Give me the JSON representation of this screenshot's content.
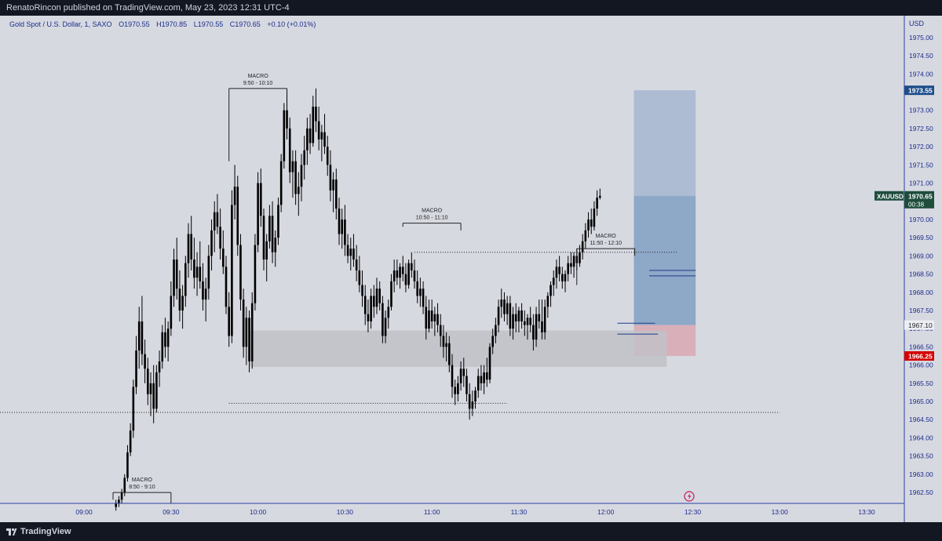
{
  "header": {
    "published": "RenatoRincon published on TradingView.com, May 23, 2023 12:31 UTC-4"
  },
  "legend": {
    "symbol": "Gold Spot / U.S. Dollar, 1, SAXO",
    "open": "O1970.55",
    "high": "H1970.85",
    "low": "L1970.55",
    "close": "C1970.65",
    "change": "+0.10 (+0.01%)"
  },
  "footer": {
    "brand": "TradingView"
  },
  "colors": {
    "background": "#d7d9e1",
    "axis_line": "#2b3ea4",
    "candle": "#000000",
    "target_zone": "#9fb1cd",
    "position_zone": "#6f93be",
    "stop_zone": "#d9a8b2",
    "gray_zone": "#c1c1c7",
    "last_price_bg": "#1e4d3c",
    "target_label_bg": "#1d4e8a",
    "stop_label_bg": "#d40000"
  },
  "chart_data": {
    "type": "candlestick",
    "currency": "USD",
    "ylim": [
      1962.2,
      1975.6
    ],
    "y_ticks": [
      "1962.50",
      "1963.00",
      "1963.50",
      "1964.00",
      "1964.50",
      "1965.00",
      "1965.50",
      "1966.00",
      "1966.50",
      "1967.00",
      "1967.50",
      "1968.00",
      "1968.50",
      "1969.00",
      "1969.50",
      "1970.00",
      "1970.50",
      "1971.00",
      "1971.50",
      "1972.00",
      "1972.50",
      "1973.00",
      "1973.50",
      "1974.00",
      "1974.50",
      "1975.00"
    ],
    "x_ticks": [
      {
        "label": "09:00",
        "minute": 540
      },
      {
        "label": "09:30",
        "minute": 570
      },
      {
        "label": "10:00",
        "minute": 600
      },
      {
        "label": "10:30",
        "minute": 630
      },
      {
        "label": "11:00",
        "minute": 660
      },
      {
        "label": "11:30",
        "minute": 690
      },
      {
        "label": "12:00",
        "minute": 720
      },
      {
        "label": "12:30",
        "minute": 750
      },
      {
        "label": "13:00",
        "minute": 780
      },
      {
        "label": "13:30",
        "minute": 810
      }
    ],
    "xlim_minutes": [
      511,
      823
    ],
    "start_minute": 551,
    "candles": [
      [
        1962.1,
        1962.3,
        1962.0,
        1962.2
      ],
      [
        1962.2,
        1962.4,
        1962.1,
        1962.3
      ],
      [
        1962.3,
        1962.6,
        1962.2,
        1962.5
      ],
      [
        1962.5,
        1963.0,
        1962.4,
        1962.9
      ],
      [
        1962.9,
        1963.8,
        1962.8,
        1963.6
      ],
      [
        1963.6,
        1964.4,
        1963.5,
        1964.2
      ],
      [
        1964.2,
        1965.6,
        1964.0,
        1965.4
      ],
      [
        1965.4,
        1966.8,
        1965.2,
        1966.4
      ],
      [
        1966.4,
        1967.6,
        1965.9,
        1967.2
      ],
      [
        1967.2,
        1967.9,
        1966.0,
        1966.3
      ],
      [
        1966.3,
        1966.7,
        1965.5,
        1965.9
      ],
      [
        1965.9,
        1966.2,
        1964.9,
        1965.2
      ],
      [
        1965.2,
        1965.8,
        1964.6,
        1965.5
      ],
      [
        1965.5,
        1966.0,
        1964.4,
        1964.8
      ],
      [
        1964.8,
        1966.0,
        1964.7,
        1965.8
      ],
      [
        1965.8,
        1966.4,
        1965.4,
        1966.1
      ],
      [
        1966.1,
        1967.1,
        1965.9,
        1966.9
      ],
      [
        1966.9,
        1967.3,
        1966.2,
        1966.5
      ],
      [
        1966.5,
        1967.2,
        1966.1,
        1967.0
      ],
      [
        1967.0,
        1968.3,
        1966.8,
        1967.9
      ],
      [
        1967.9,
        1969.2,
        1967.6,
        1968.9
      ],
      [
        1968.9,
        1969.5,
        1967.8,
        1968.1
      ],
      [
        1968.1,
        1968.6,
        1967.2,
        1967.5
      ],
      [
        1967.5,
        1968.2,
        1967.0,
        1967.9
      ],
      [
        1967.9,
        1969.0,
        1967.6,
        1968.8
      ],
      [
        1968.8,
        1969.9,
        1968.4,
        1969.6
      ],
      [
        1969.6,
        1970.1,
        1968.6,
        1968.9
      ],
      [
        1968.9,
        1969.5,
        1968.1,
        1968.4
      ],
      [
        1968.4,
        1969.1,
        1967.9,
        1968.7
      ],
      [
        1968.7,
        1969.4,
        1968.1,
        1968.3
      ],
      [
        1968.3,
        1968.8,
        1967.5,
        1967.8
      ],
      [
        1967.8,
        1968.4,
        1967.2,
        1968.1
      ],
      [
        1968.1,
        1969.3,
        1967.8,
        1969.0
      ],
      [
        1969.0,
        1970.0,
        1968.6,
        1969.7
      ],
      [
        1969.7,
        1970.5,
        1969.1,
        1970.2
      ],
      [
        1970.2,
        1970.7,
        1969.6,
        1969.8
      ],
      [
        1969.8,
        1970.3,
        1968.9,
        1969.2
      ],
      [
        1969.2,
        1969.7,
        1968.5,
        1968.7
      ],
      [
        1968.7,
        1969.0,
        1967.4,
        1967.6
      ],
      [
        1967.6,
        1968.0,
        1966.5,
        1966.8
      ],
      [
        1966.8,
        1970.8,
        1966.6,
        1970.4
      ],
      [
        1970.4,
        1971.5,
        1970.0,
        1970.9
      ],
      [
        1970.9,
        1971.2,
        1969.0,
        1969.3
      ],
      [
        1969.3,
        1969.6,
        1967.5,
        1967.8
      ],
      [
        1967.8,
        1968.1,
        1966.2,
        1966.5
      ],
      [
        1966.5,
        1967.6,
        1966.0,
        1967.3
      ],
      [
        1967.3,
        1967.5,
        1965.8,
        1966.1
      ],
      [
        1966.1,
        1968.0,
        1965.9,
        1967.7
      ],
      [
        1967.7,
        1969.6,
        1967.5,
        1969.3
      ],
      [
        1969.3,
        1971.3,
        1969.1,
        1971.0
      ],
      [
        1971.0,
        1971.4,
        1969.8,
        1970.1
      ],
      [
        1970.1,
        1970.3,
        1968.6,
        1968.9
      ],
      [
        1968.9,
        1969.6,
        1968.3,
        1969.4
      ],
      [
        1969.4,
        1970.4,
        1969.2,
        1970.1
      ],
      [
        1970.1,
        1970.5,
        1968.8,
        1969.1
      ],
      [
        1969.1,
        1969.7,
        1968.7,
        1969.5
      ],
      [
        1969.5,
        1970.6,
        1969.3,
        1970.4
      ],
      [
        1970.4,
        1971.8,
        1970.2,
        1971.6
      ],
      [
        1971.6,
        1973.2,
        1971.4,
        1973.0
      ],
      [
        1973.0,
        1973.6,
        1972.2,
        1972.5
      ],
      [
        1972.5,
        1972.8,
        1971.0,
        1971.3
      ],
      [
        1971.3,
        1971.9,
        1970.6,
        1971.6
      ],
      [
        1971.6,
        1971.9,
        1970.4,
        1970.7
      ],
      [
        1970.7,
        1971.3,
        1970.1,
        1970.9
      ],
      [
        1970.9,
        1971.8,
        1970.5,
        1971.5
      ],
      [
        1971.5,
        1972.3,
        1971.1,
        1971.9
      ],
      [
        1971.9,
        1972.8,
        1971.5,
        1972.5
      ],
      [
        1972.5,
        1972.9,
        1971.8,
        1972.1
      ],
      [
        1972.1,
        1973.4,
        1972.0,
        1973.1
      ],
      [
        1973.1,
        1973.6,
        1972.4,
        1972.7
      ],
      [
        1972.7,
        1973.1,
        1971.9,
        1972.2
      ],
      [
        1972.2,
        1972.6,
        1971.6,
        1972.4
      ],
      [
        1972.4,
        1972.9,
        1971.8,
        1972.0
      ],
      [
        1972.0,
        1972.3,
        1971.2,
        1971.5
      ],
      [
        1971.5,
        1971.9,
        1970.5,
        1970.8
      ],
      [
        1970.8,
        1971.3,
        1970.2,
        1971.1
      ],
      [
        1971.1,
        1971.4,
        1970.0,
        1970.3
      ],
      [
        1970.3,
        1970.6,
        1969.3,
        1969.6
      ],
      [
        1969.6,
        1970.3,
        1969.2,
        1970.0
      ],
      [
        1970.0,
        1970.4,
        1969.0,
        1969.3
      ],
      [
        1969.3,
        1969.6,
        1968.8,
        1969.0
      ],
      [
        1969.0,
        1969.5,
        1968.6,
        1969.2
      ],
      [
        1969.2,
        1969.6,
        1968.7,
        1968.9
      ],
      [
        1968.9,
        1969.3,
        1968.3,
        1968.6
      ],
      [
        1968.6,
        1969.0,
        1968.0,
        1968.2
      ],
      [
        1968.2,
        1968.6,
        1967.6,
        1967.9
      ],
      [
        1967.9,
        1968.2,
        1967.1,
        1967.4
      ],
      [
        1967.4,
        1967.8,
        1966.9,
        1967.2
      ],
      [
        1967.2,
        1968.1,
        1967.0,
        1967.9
      ],
      [
        1967.9,
        1968.2,
        1967.3,
        1967.6
      ],
      [
        1967.6,
        1968.4,
        1967.4,
        1968.1
      ],
      [
        1968.1,
        1968.3,
        1967.5,
        1967.7
      ],
      [
        1967.7,
        1967.9,
        1966.6,
        1966.8
      ],
      [
        1966.8,
        1967.5,
        1966.6,
        1967.3
      ],
      [
        1967.3,
        1967.8,
        1967.0,
        1967.6
      ],
      [
        1967.6,
        1968.5,
        1967.5,
        1968.3
      ],
      [
        1968.3,
        1968.9,
        1968.0,
        1968.6
      ],
      [
        1968.6,
        1968.9,
        1968.2,
        1968.4
      ],
      [
        1968.4,
        1968.8,
        1968.1,
        1968.7
      ],
      [
        1968.7,
        1969.0,
        1968.3,
        1968.5
      ],
      [
        1968.5,
        1968.8,
        1968.0,
        1968.2
      ],
      [
        1968.2,
        1968.9,
        1968.1,
        1968.8
      ],
      [
        1968.8,
        1969.1,
        1968.4,
        1968.6
      ],
      [
        1968.6,
        1968.9,
        1968.1,
        1968.3
      ],
      [
        1968.3,
        1968.6,
        1967.7,
        1967.9
      ],
      [
        1967.9,
        1968.4,
        1967.6,
        1968.1
      ],
      [
        1968.1,
        1968.3,
        1967.4,
        1967.6
      ],
      [
        1967.6,
        1967.9,
        1966.7,
        1967.0
      ],
      [
        1967.0,
        1967.8,
        1966.9,
        1967.5
      ],
      [
        1967.5,
        1967.8,
        1967.0,
        1967.2
      ],
      [
        1967.2,
        1967.6,
        1966.8,
        1967.4
      ],
      [
        1967.4,
        1967.7,
        1966.9,
        1967.1
      ],
      [
        1967.1,
        1967.4,
        1966.5,
        1966.8
      ],
      [
        1966.8,
        1967.1,
        1966.2,
        1966.5
      ],
      [
        1966.5,
        1966.9,
        1966.1,
        1966.6
      ],
      [
        1966.6,
        1966.8,
        1965.8,
        1966.0
      ],
      [
        1966.0,
        1966.3,
        1965.1,
        1965.4
      ],
      [
        1965.4,
        1965.6,
        1964.9,
        1965.2
      ],
      [
        1965.2,
        1965.7,
        1965.0,
        1965.5
      ],
      [
        1965.5,
        1966.1,
        1965.3,
        1965.9
      ],
      [
        1965.9,
        1966.2,
        1965.4,
        1965.7
      ],
      [
        1965.7,
        1965.9,
        1965.0,
        1965.2
      ],
      [
        1965.2,
        1965.5,
        1964.5,
        1964.8
      ],
      [
        1964.8,
        1965.3,
        1964.6,
        1965.0
      ],
      [
        1965.0,
        1965.4,
        1964.8,
        1965.3
      ],
      [
        1965.3,
        1965.9,
        1965.1,
        1965.7
      ],
      [
        1965.7,
        1966.0,
        1965.3,
        1965.5
      ],
      [
        1965.5,
        1966.0,
        1965.2,
        1965.8
      ],
      [
        1965.8,
        1966.2,
        1965.4,
        1965.6
      ],
      [
        1965.6,
        1966.6,
        1965.5,
        1966.5
      ],
      [
        1966.5,
        1967.0,
        1966.3,
        1966.8
      ],
      [
        1966.8,
        1967.3,
        1966.6,
        1967.1
      ],
      [
        1967.1,
        1967.8,
        1966.9,
        1967.6
      ],
      [
        1967.6,
        1968.1,
        1967.3,
        1967.8
      ],
      [
        1967.8,
        1968.0,
        1967.2,
        1967.4
      ],
      [
        1967.4,
        1967.9,
        1967.1,
        1967.7
      ],
      [
        1967.7,
        1967.9,
        1966.8,
        1967.0
      ],
      [
        1967.0,
        1967.6,
        1966.7,
        1967.4
      ],
      [
        1967.4,
        1967.7,
        1966.9,
        1967.2
      ],
      [
        1967.2,
        1967.6,
        1966.9,
        1967.5
      ],
      [
        1967.5,
        1967.7,
        1967.0,
        1967.2
      ],
      [
        1967.2,
        1967.5,
        1966.8,
        1967.1
      ],
      [
        1967.1,
        1967.4,
        1966.7,
        1967.3
      ],
      [
        1967.3,
        1967.6,
        1966.9,
        1967.1
      ],
      [
        1967.1,
        1967.4,
        1966.4,
        1966.7
      ],
      [
        1966.7,
        1967.6,
        1966.5,
        1967.4
      ],
      [
        1967.4,
        1967.8,
        1967.0,
        1967.2
      ],
      [
        1967.2,
        1967.8,
        1966.7,
        1966.9
      ],
      [
        1966.9,
        1967.8,
        1966.7,
        1967.6
      ],
      [
        1967.6,
        1968.0,
        1967.3,
        1967.9
      ],
      [
        1967.9,
        1968.3,
        1967.6,
        1968.2
      ],
      [
        1968.2,
        1968.6,
        1967.9,
        1968.4
      ],
      [
        1968.4,
        1968.9,
        1968.1,
        1968.7
      ],
      [
        1968.7,
        1969.0,
        1968.3,
        1968.5
      ],
      [
        1968.5,
        1968.7,
        1968.1,
        1968.3
      ],
      [
        1968.3,
        1968.6,
        1968.0,
        1968.5
      ],
      [
        1968.5,
        1969.0,
        1968.3,
        1968.8
      ],
      [
        1968.8,
        1969.1,
        1968.5,
        1968.7
      ],
      [
        1968.7,
        1969.1,
        1968.4,
        1969.0
      ],
      [
        1969.0,
        1969.2,
        1968.6,
        1968.8
      ],
      [
        1968.8,
        1969.3,
        1968.7,
        1969.1
      ],
      [
        1969.1,
        1969.6,
        1968.9,
        1969.4
      ],
      [
        1969.4,
        1969.9,
        1969.2,
        1969.7
      ],
      [
        1969.7,
        1970.2,
        1969.5,
        1970.0
      ],
      [
        1970.0,
        1970.3,
        1969.6,
        1969.8
      ],
      [
        1969.8,
        1970.5,
        1969.7,
        1970.3
      ],
      [
        1970.3,
        1970.8,
        1970.1,
        1970.6
      ],
      [
        1970.6,
        1970.85,
        1970.55,
        1970.65
      ]
    ],
    "zones": [
      {
        "name": "target-zone",
        "t0": 729.7,
        "t1": 751.0,
        "y0": 1970.65,
        "y1": 1973.55
      },
      {
        "name": "position-zone",
        "t0": 729.7,
        "t1": 751.0,
        "y0": 1967.1,
        "y1": 1970.65
      },
      {
        "name": "stop-zone",
        "t0": 729.7,
        "t1": 751.0,
        "y0": 1966.25,
        "y1": 1967.1
      },
      {
        "name": "gray-zone",
        "t0": 597.0,
        "t1": 741.0,
        "y0": 1965.95,
        "y1": 1966.95
      }
    ],
    "macros": [
      {
        "label": "MACRO",
        "range": "8:50 - 9:10",
        "t0": 550,
        "t1": 570,
        "bracket_y": 1962.5,
        "leg_y": 1962.2,
        "left_leg_y": 1962.3
      },
      {
        "label": "MACRO",
        "range": "9:50 - 10:10",
        "t0": 590,
        "t1": 610,
        "bracket_y": 1973.6,
        "leg_y": 1973.5,
        "left_leg_y": 1971.6
      },
      {
        "label": "MACRO",
        "range": "10:50 - 11:10",
        "t0": 650,
        "t1": 670,
        "bracket_y": 1969.9,
        "leg_y": 1969.7,
        "left_leg_y": 1969.8
      },
      {
        "label": "MACRO",
        "range": "11:50 - 12:10",
        "t0": 710,
        "t1": 730,
        "bracket_y": 1969.2,
        "leg_y": 1969.0,
        "left_leg_y": 1968.2
      }
    ],
    "lines": [
      {
        "name": "low-dotted-line",
        "t0": 511,
        "t1": 780,
        "y": 1964.7,
        "style": "dotted"
      },
      {
        "name": "equal-lows-dotted-line",
        "t0": 590,
        "t1": 686,
        "y": 1964.95,
        "style": "dotted"
      },
      {
        "name": "macro-high-dotted-line",
        "t0": 654,
        "t1": 745,
        "y": 1969.1,
        "style": "dotted"
      },
      {
        "name": "blue-line-1",
        "t0": 735,
        "t1": 751,
        "y": 1968.6,
        "style": "solid"
      },
      {
        "name": "blue-line-2",
        "t0": 735,
        "t1": 751,
        "y": 1968.45,
        "style": "solid"
      },
      {
        "name": "blue-line-3",
        "t0": 724,
        "t1": 737,
        "y": 1967.15,
        "style": "solid"
      },
      {
        "name": "blue-line-4",
        "t0": 724,
        "t1": 738,
        "y": 1966.85,
        "style": "solid"
      }
    ],
    "price_labels": {
      "target": "1973.55",
      "last_symbol": "XAUUSD",
      "last_price": "1970.65",
      "last_countdown": "00:38",
      "entry": "1967.10",
      "stop": "1966.25"
    }
  }
}
